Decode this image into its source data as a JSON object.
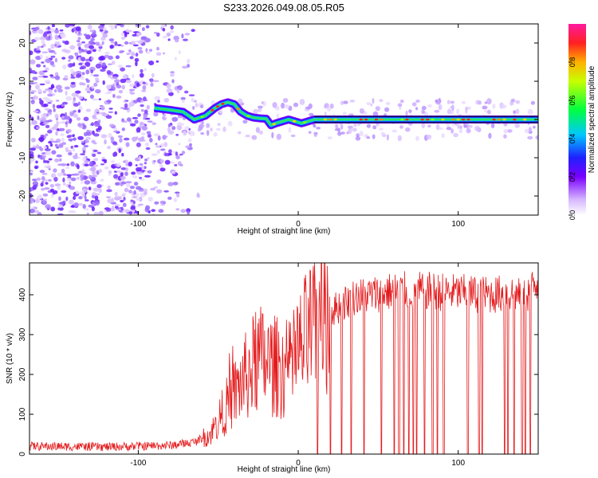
{
  "title": "S233.2026.049.08.05.R05",
  "colors": {
    "snr_line": "#e41a1c",
    "track": "#ff2a1a"
  },
  "chart_data": [
    {
      "type": "heatmap",
      "title": "S233.2026.049.08.05.R05",
      "xlabel": "Height of straight line (km)",
      "ylabel": "Frequency (Hz)",
      "xlim": [
        -168,
        150
      ],
      "ylim": [
        -25,
        25
      ],
      "x_ticks": [
        -100,
        0,
        100
      ],
      "y_ticks": [
        20,
        10,
        0,
        -10,
        -20
      ],
      "track": {
        "x": [
          -90,
          -80,
          -72,
          -65,
          -58,
          -52,
          -48,
          -44,
          -40,
          -36,
          -32,
          -28,
          -24,
          -20,
          -17,
          -14,
          -10,
          -6,
          -2,
          2,
          6,
          10,
          14,
          20,
          30,
          50,
          80,
          110,
          150
        ],
        "y": [
          3,
          2.5,
          2,
          0,
          1,
          3,
          4,
          4.5,
          4,
          2,
          1,
          0.5,
          0.3,
          0.2,
          -1.5,
          -1,
          -0.5,
          0,
          -0.5,
          -1,
          -0.5,
          0,
          0,
          0,
          0,
          0,
          0,
          0,
          0
        ]
      },
      "noise_region_x": [
        -168,
        -62
      ],
      "colorbar": {
        "label": "Normalized spectral amplitude",
        "ticks": [
          "0.0",
          "0.2",
          "0.4",
          "0.6",
          "0.8"
        ]
      }
    },
    {
      "type": "line",
      "xlabel": "Height of straight line (km)",
      "ylabel": "SNR (10 * v/v)",
      "xlim": [
        -168,
        150
      ],
      "ylim": [
        0,
        480
      ],
      "x_ticks": [
        -100,
        0,
        100
      ],
      "y_ticks": [
        0,
        100,
        200,
        300,
        400
      ],
      "series": [
        {
          "name": "SNR",
          "envelope_x": [
            -168,
            -120,
            -80,
            -65,
            -55,
            -45,
            -35,
            -25,
            -15,
            -5,
            5,
            15,
            25,
            35,
            45,
            60,
            80,
            100,
            120,
            135,
            140,
            150
          ],
          "envelope_y": [
            20,
            18,
            22,
            30,
            50,
            120,
            180,
            240,
            220,
            210,
            290,
            340,
            370,
            395,
            400,
            410,
            410,
            405,
            400,
            405,
            390,
            430
          ],
          "dropouts_x": [
            12,
            20,
            27,
            33,
            41,
            52,
            60,
            63,
            66,
            69,
            72,
            74,
            79,
            84,
            87,
            91,
            106,
            113,
            115,
            129,
            131,
            135,
            140,
            142,
            145
          ]
        }
      ]
    }
  ]
}
